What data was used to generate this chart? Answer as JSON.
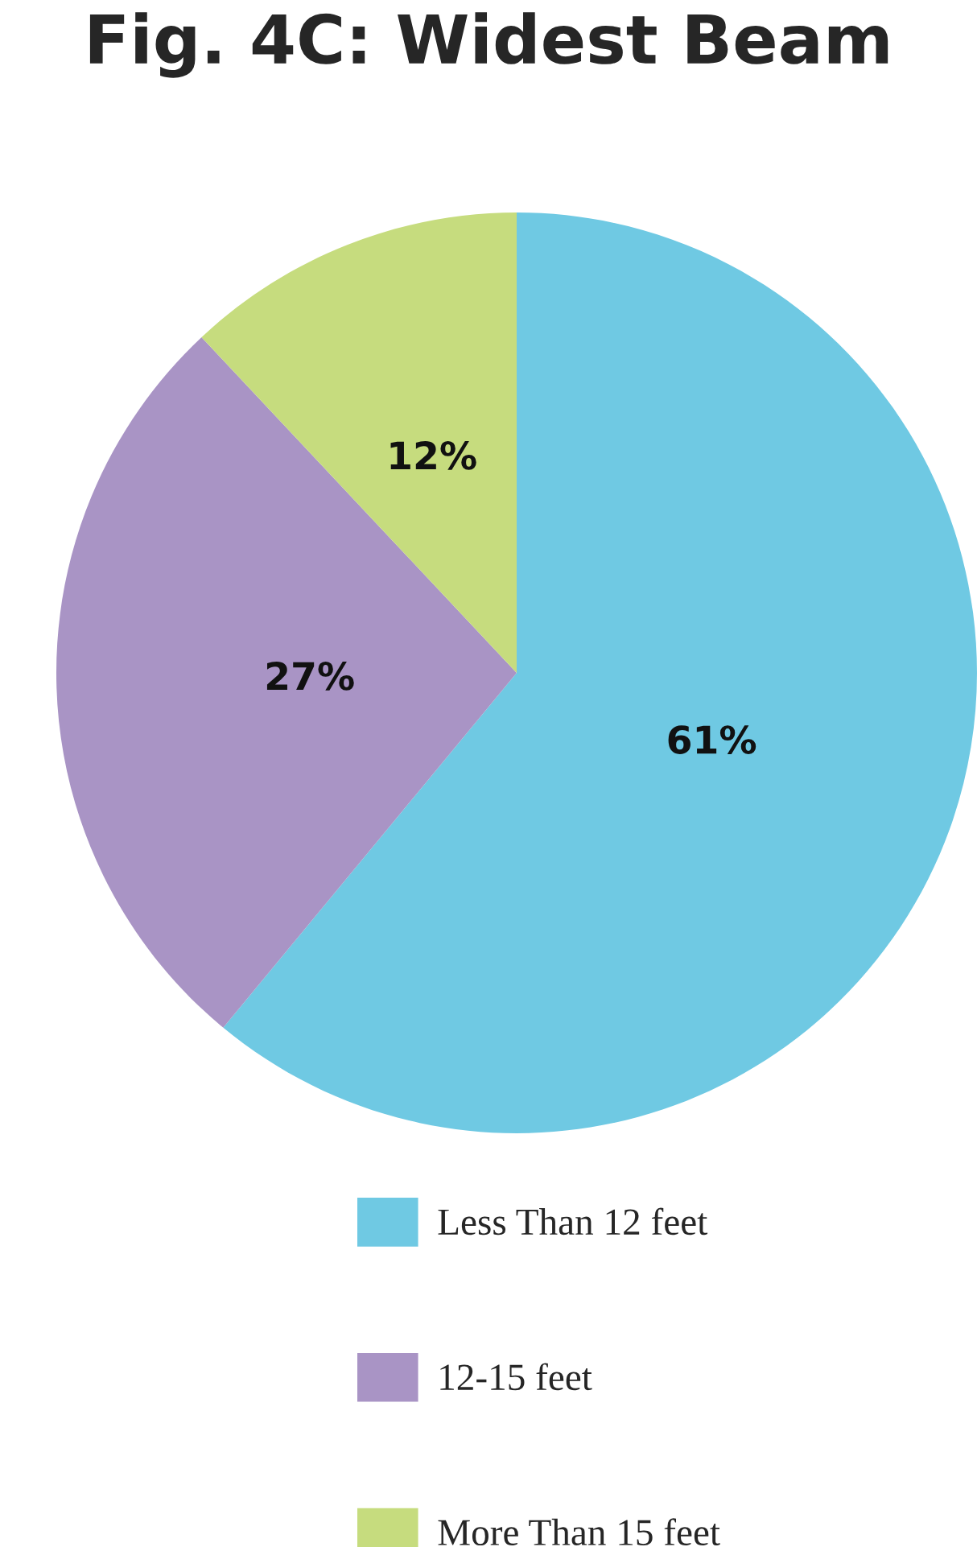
{
  "chart_data": {
    "type": "pie",
    "title": "Fig. 4C: Widest Beam",
    "categories": [
      "Less Than 12 feet",
      "12-15 feet",
      "More Than 15 feet"
    ],
    "values": [
      61,
      27,
      12
    ],
    "colors": [
      "#6fc9e3",
      "#a994c5",
      "#c6dc7e"
    ],
    "value_labels": [
      "61%",
      "27%",
      "12%"
    ],
    "legend": "bottom"
  }
}
